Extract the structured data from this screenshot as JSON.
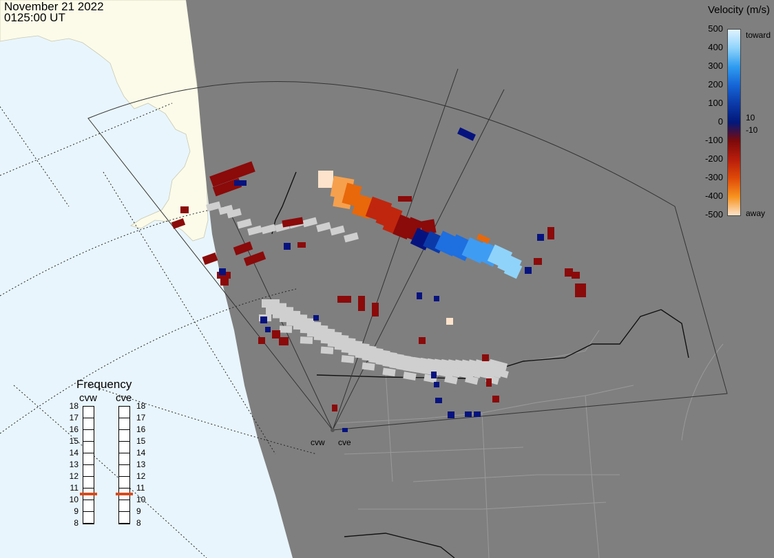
{
  "header": {
    "date": "November 21 2022",
    "time": "0125:00 UT"
  },
  "legend": {
    "title": "Velocity (m/s)",
    "ticks": [
      "500",
      "400",
      "300",
      "200",
      "100",
      "0",
      "-100",
      "-200",
      "-300",
      "-400",
      "-500"
    ],
    "inner_ticks": [
      "10",
      "-10"
    ],
    "toward_label": "toward",
    "away_label": "away",
    "colors": [
      "#e0f3ff",
      "#8fd3fb",
      "#2f9cf0",
      "#1565d6",
      "#0b3aa8",
      "#02187a",
      "#7d0a0a",
      "#b81d0b",
      "#df4a08",
      "#f7931e",
      "#fde3cb"
    ]
  },
  "frequency_panel": {
    "title": "Frequency",
    "radars": [
      {
        "name": "cvw",
        "frequency_mhz": 10.5
      },
      {
        "name": "cve",
        "frequency_mhz": 10.5
      }
    ],
    "scale": [
      "18",
      "17",
      "16",
      "15",
      "14",
      "13",
      "12",
      "11",
      "10",
      "9",
      "8"
    ]
  },
  "map": {
    "colors": {
      "ocean": "#e8f5fd",
      "land": "#fcfbe9",
      "night": "#7f7f7f",
      "ground_scatter": "#cfcfcf"
    },
    "radar_sites": [
      "cvw",
      "cve"
    ]
  }
}
